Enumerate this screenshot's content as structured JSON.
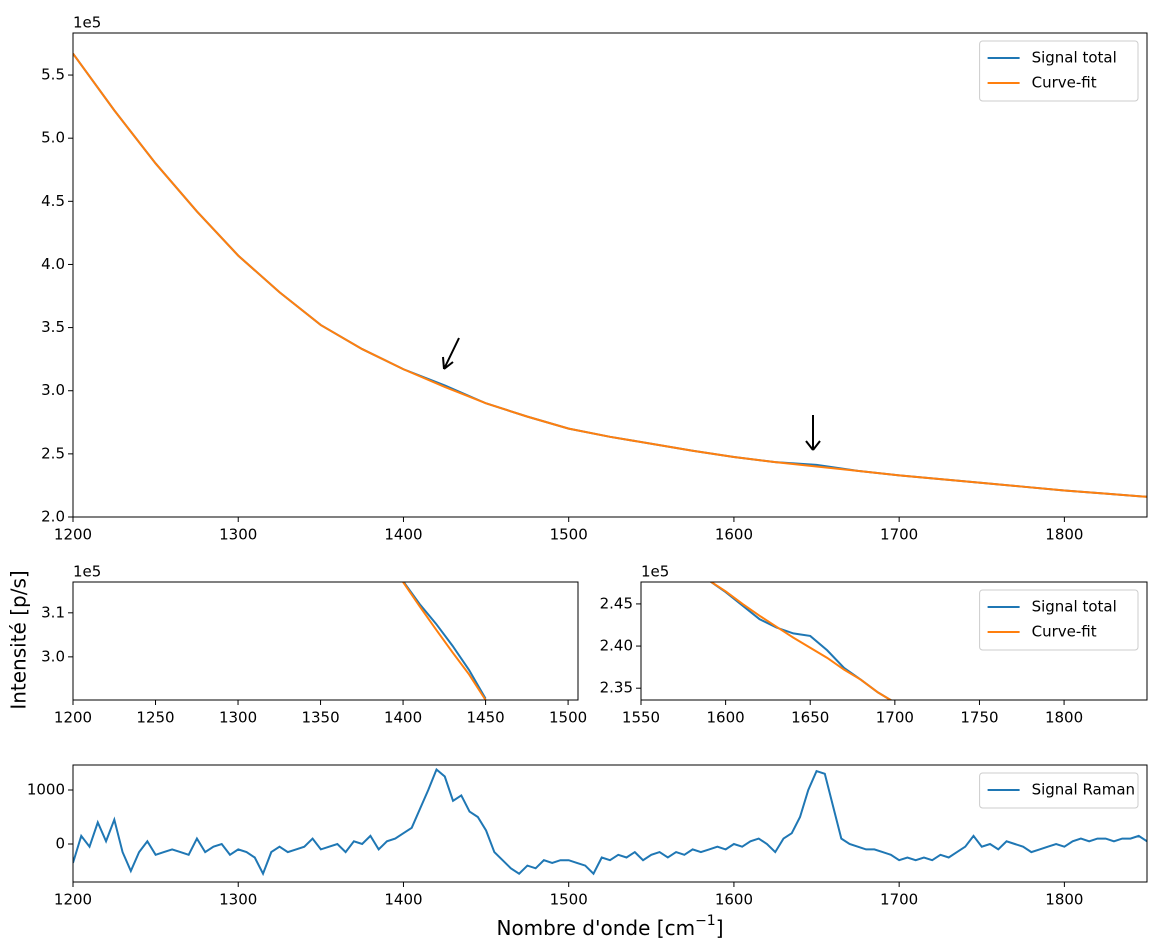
{
  "figure": {
    "ylabel": "Intensité [p/s]",
    "xlabel": {
      "text": "Nombre d'onde [cm",
      "exponent": "−1",
      "close": "]"
    }
  },
  "chart_data": [
    {
      "type": "line",
      "offset_label": "1e5",
      "x": [
        1200,
        1225,
        1250,
        1275,
        1300,
        1325,
        1350,
        1375,
        1400,
        1425,
        1450,
        1475,
        1500,
        1525,
        1550,
        1575,
        1600,
        1625,
        1650,
        1675,
        1700,
        1725,
        1750,
        1775,
        1800,
        1825,
        1850
      ],
      "series": [
        {
          "name": "Signal total",
          "color": "#1f77b4",
          "values": [
            5.67,
            5.22,
            4.8,
            4.42,
            4.07,
            3.78,
            3.52,
            3.33,
            3.17,
            3.042,
            2.9,
            2.795,
            2.7,
            2.635,
            2.58,
            2.525,
            2.475,
            2.435,
            2.413,
            2.365,
            2.33,
            2.3,
            2.27,
            2.24,
            2.21,
            2.185,
            2.16
          ]
        },
        {
          "name": "Curve-fit",
          "color": "#ff7f0e",
          "values": [
            5.67,
            5.22,
            4.8,
            4.42,
            4.07,
            3.78,
            3.52,
            3.33,
            3.17,
            3.03,
            2.9,
            2.795,
            2.7,
            2.635,
            2.58,
            2.525,
            2.475,
            2.435,
            2.4,
            2.365,
            2.33,
            2.3,
            2.27,
            2.24,
            2.21,
            2.185,
            2.16
          ]
        }
      ],
      "xlim": [
        1200,
        1850
      ],
      "ylim": [
        2.0,
        5.833
      ],
      "xticks": [
        1200,
        1300,
        1400,
        1500,
        1600,
        1700,
        1800
      ],
      "yticks": [
        {
          "value": 2.0,
          "label": "2.0"
        },
        2.5,
        {
          "value": 3.0,
          "label": "3.0"
        },
        3.5,
        {
          "value": 4.0,
          "label": "4.0"
        },
        4.5,
        {
          "value": 5.0,
          "label": "5.0"
        },
        5.5
      ],
      "legend": "upper right"
    },
    {
      "type": "line",
      "offset_label": "1e5",
      "x": [
        1400,
        1410,
        1420,
        1430,
        1440,
        1450
      ],
      "series": [
        {
          "name": "Signal total",
          "color": "#1f77b4",
          "values": [
            3.172,
            3.12,
            3.075,
            3.025,
            2.97,
            2.905
          ]
        },
        {
          "name": "Curve-fit",
          "color": "#ff7f0e",
          "values": [
            3.17,
            3.115,
            3.062,
            3.01,
            2.96,
            2.902
          ]
        }
      ],
      "xlim": [
        1200,
        1506
      ],
      "ylim": [
        2.902,
        3.17
      ],
      "xticks": [
        1200,
        1250,
        1300,
        1350,
        1400,
        1450,
        1500
      ],
      "yticks": [
        {
          "value": 3.0,
          "label": "3.0"
        },
        3.1
      ]
    },
    {
      "type": "line",
      "offset_label": "1e5",
      "x": [
        1590,
        1600,
        1610,
        1620,
        1630,
        1640,
        1650,
        1660,
        1670,
        1680,
        1690,
        1700
      ],
      "series": [
        {
          "name": "Signal total",
          "color": "#1f77b4",
          "values": [
            2.478,
            2.464,
            2.448,
            2.432,
            2.422,
            2.415,
            2.412,
            2.395,
            2.374,
            2.36,
            2.345,
            2.333
          ]
        },
        {
          "name": "Curve-fit",
          "color": "#ff7f0e",
          "values": [
            2.478,
            2.465,
            2.45,
            2.436,
            2.423,
            2.41,
            2.398,
            2.386,
            2.372,
            2.36,
            2.345,
            2.333
          ]
        }
      ],
      "xlim": [
        1550,
        1849
      ],
      "ylim": [
        2.336,
        2.476
      ],
      "xticks": [
        1550,
        1600,
        1650,
        1700,
        1750,
        1800
      ],
      "yticks": [
        2.35,
        {
          "value": 2.4,
          "label": "2.40"
        },
        2.45
      ],
      "legend": "upper right"
    },
    {
      "type": "line",
      "x": [
        1200,
        1205,
        1210,
        1215,
        1220,
        1225,
        1230,
        1235,
        1240,
        1245,
        1250,
        1255,
        1260,
        1265,
        1270,
        1275,
        1280,
        1285,
        1290,
        1295,
        1300,
        1305,
        1310,
        1315,
        1320,
        1325,
        1330,
        1335,
        1340,
        1345,
        1350,
        1355,
        1360,
        1365,
        1370,
        1375,
        1380,
        1385,
        1390,
        1395,
        1400,
        1405,
        1410,
        1415,
        1420,
        1425,
        1430,
        1435,
        1440,
        1445,
        1450,
        1455,
        1460,
        1465,
        1470,
        1475,
        1480,
        1485,
        1490,
        1495,
        1500,
        1505,
        1510,
        1515,
        1520,
        1525,
        1530,
        1535,
        1540,
        1545,
        1550,
        1555,
        1560,
        1565,
        1570,
        1575,
        1580,
        1585,
        1590,
        1595,
        1600,
        1605,
        1610,
        1615,
        1620,
        1625,
        1630,
        1635,
        1640,
        1645,
        1650,
        1655,
        1660,
        1665,
        1670,
        1675,
        1680,
        1685,
        1690,
        1695,
        1700,
        1705,
        1710,
        1715,
        1720,
        1725,
        1730,
        1735,
        1740,
        1745,
        1750,
        1755,
        1760,
        1765,
        1770,
        1775,
        1780,
        1785,
        1790,
        1795,
        1800,
        1805,
        1810,
        1815,
        1820,
        1825,
        1830,
        1835,
        1840,
        1845,
        1850
      ],
      "series": [
        {
          "name": "Signal Raman",
          "color": "#1f77b4",
          "values": [
            -350,
            150,
            -50,
            400,
            50,
            450,
            -150,
            -500,
            -150,
            50,
            -200,
            -150,
            -100,
            -150,
            -200,
            100,
            -150,
            -50,
            0,
            -200,
            -100,
            -150,
            -250,
            -550,
            -150,
            -50,
            -150,
            -100,
            -50,
            100,
            -100,
            -50,
            0,
            -150,
            50,
            0,
            150,
            -100,
            50,
            100,
            200,
            300,
            650,
            1000,
            1380,
            1250,
            800,
            900,
            600,
            500,
            250,
            -150,
            -300,
            -450,
            -550,
            -400,
            -450,
            -300,
            -350,
            -300,
            -300,
            -350,
            -400,
            -550,
            -250,
            -300,
            -200,
            -250,
            -150,
            -300,
            -200,
            -150,
            -250,
            -150,
            -200,
            -100,
            -150,
            -100,
            -50,
            -100,
            0,
            -50,
            50,
            100,
            0,
            -150,
            100,
            200,
            500,
            1000,
            1350,
            1300,
            700,
            100,
            0,
            -50,
            -100,
            -100,
            -150,
            -200,
            -300,
            -250,
            -300,
            -250,
            -300,
            -200,
            -250,
            -150,
            -50,
            150,
            -50,
            0,
            -100,
            50,
            0,
            -50,
            -150,
            -100,
            -50,
            0,
            -50,
            50,
            100,
            50,
            100,
            100,
            50,
            100,
            100,
            150,
            50
          ]
        }
      ],
      "xlim": [
        1200,
        1850
      ],
      "ylim": [
        -704,
        1463
      ],
      "xticks": [
        1200,
        1300,
        1400,
        1500,
        1600,
        1700,
        1800
      ],
      "yticks": [
        0,
        1000
      ],
      "legend": "upper right"
    }
  ]
}
